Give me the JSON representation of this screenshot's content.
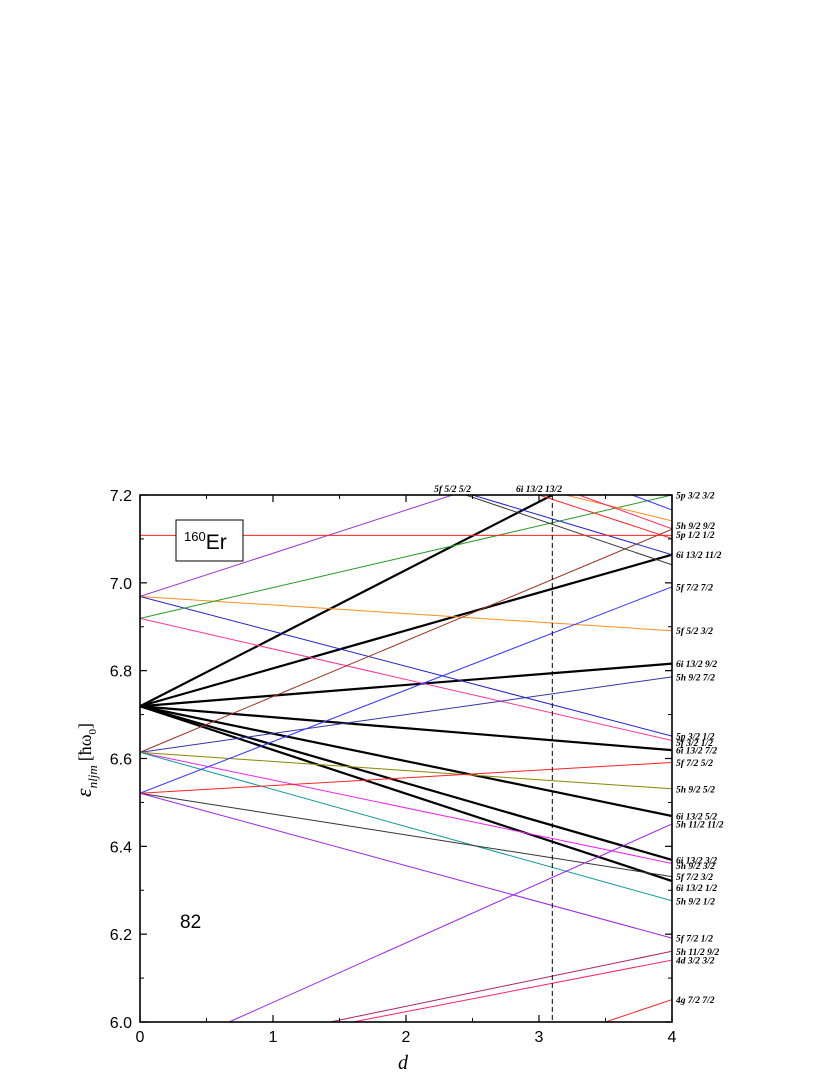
{
  "chart_data": {
    "type": "line",
    "xlim": [
      0,
      4
    ],
    "ylim": [
      6.0,
      7.2
    ],
    "x_ticks": [
      "0",
      "1",
      "2",
      "3",
      "4"
    ],
    "y_ticks": [
      "6.0",
      "6.2",
      "6.4",
      "6.6",
      "6.8",
      "7.0",
      "7.2"
    ],
    "xlabel": "d",
    "ylabel_symbol": "ε",
    "ylabel_subscript": "nljm",
    "ylabel_unit": "[ħω",
    "ylabel_unit_sub": "0",
    "ylabel_unit_close": "]",
    "nucleus_mass": "160",
    "nucleus_symbol": "Er",
    "magic_number": "82",
    "vertical_line_x": 3.1,
    "horizontal_line_y": 7.108,
    "lines": [
      {
        "x0": 0,
        "y0": 6.719,
        "x1": 3.1,
        "y1": 7.2,
        "color": "#000000",
        "thick": true
      },
      {
        "x0": 0,
        "y0": 6.719,
        "x1": 4,
        "y1": 7.064,
        "color": "#000000",
        "thick": true
      },
      {
        "x0": 0,
        "y0": 6.719,
        "x1": 4,
        "y1": 6.816,
        "color": "#000000",
        "thick": true
      },
      {
        "x0": 0,
        "y0": 6.719,
        "x1": 4,
        "y1": 6.619,
        "color": "#000000",
        "thick": true
      },
      {
        "x0": 0,
        "y0": 6.719,
        "x1": 4,
        "y1": 6.469,
        "color": "#000000",
        "thick": true
      },
      {
        "x0": 0,
        "y0": 6.719,
        "x1": 4,
        "y1": 6.369,
        "color": "#000000",
        "thick": true
      },
      {
        "x0": 0,
        "y0": 6.719,
        "x1": 4,
        "y1": 6.321,
        "color": "#000000",
        "thick": true
      },
      {
        "x0": 0,
        "y0": 6.969,
        "x1": 2.35,
        "y1": 7.2,
        "color": "#9933cc"
      },
      {
        "x0": 0,
        "y0": 6.969,
        "x1": 4,
        "y1": 6.891,
        "color": "#ff8c1a"
      },
      {
        "x0": 0,
        "y0": 6.969,
        "x1": 4,
        "y1": 6.651,
        "color": "#2222cc"
      },
      {
        "x0": 0,
        "y0": 6.919,
        "x1": 4,
        "y1": 7.2,
        "color": "#229922"
      },
      {
        "x0": 0,
        "y0": 6.919,
        "x1": 4,
        "y1": 6.641,
        "color": "#ff3399"
      },
      {
        "x0": 0,
        "y0": 6.614,
        "x1": 4,
        "y1": 7.122,
        "color": "#993322"
      },
      {
        "x0": 0,
        "y0": 6.614,
        "x1": 4,
        "y1": 6.786,
        "color": "#3333aa"
      },
      {
        "x0": 0,
        "y0": 6.614,
        "x1": 4,
        "y1": 6.531,
        "color": "#888800"
      },
      {
        "x0": 0,
        "y0": 6.614,
        "x1": 4,
        "y1": 6.361,
        "color": "#ee22ee"
      },
      {
        "x0": 0,
        "y0": 6.614,
        "x1": 4,
        "y1": 6.276,
        "color": "#119999"
      },
      {
        "x0": 0,
        "y0": 6.521,
        "x1": 4,
        "y1": 6.991,
        "color": "#3333ff"
      },
      {
        "x0": 0,
        "y0": 6.521,
        "x1": 4,
        "y1": 6.591,
        "color": "#ff2222"
      },
      {
        "x0": 0,
        "y0": 6.521,
        "x1": 4,
        "y1": 6.331,
        "color": "#333333"
      },
      {
        "x0": 0,
        "y0": 6.521,
        "x1": 4,
        "y1": 6.191,
        "color": "#9922ee"
      },
      {
        "x0": 0.67,
        "y0": 6.0,
        "x1": 4,
        "y1": 6.451,
        "color": "#9922ee"
      },
      {
        "x0": 1.43,
        "y0": 6.0,
        "x1": 4,
        "y1": 6.161,
        "color": "#aa2266"
      },
      {
        "x0": 1.6,
        "y0": 6.0,
        "x1": 4,
        "y1": 6.141,
        "color": "#ff2266"
      },
      {
        "x0": 3.5,
        "y0": 6.0,
        "x1": 4,
        "y1": 6.051,
        "color": "#ff2222"
      },
      {
        "x0": 2.45,
        "y0": 7.2,
        "x1": 4,
        "y1": 7.041,
        "color": "#333333"
      },
      {
        "x0": 2.5,
        "y0": 7.2,
        "x1": 4,
        "y1": 7.064,
        "color": "#2222cc"
      },
      {
        "x0": 3.2,
        "y0": 7.2,
        "x1": 4,
        "y1": 7.141,
        "color": "#ff8c1a"
      },
      {
        "x0": 3.0,
        "y0": 7.2,
        "x1": 4,
        "y1": 7.101,
        "color": "#ff2222"
      },
      {
        "x0": 3.3,
        "y0": 7.2,
        "x1": 4,
        "y1": 7.123,
        "color": "#ff2266"
      },
      {
        "x0": 3.7,
        "y0": 7.2,
        "x1": 4,
        "y1": 7.166,
        "color": "#3333ff"
      }
    ],
    "right_labels": [
      {
        "text": "5p 3/2 3/2",
        "y": 7.2
      },
      {
        "text": "5h 9/2 9/2",
        "y": 7.13
      },
      {
        "text": "5p 1/2 1/2",
        "y": 7.11
      },
      {
        "text": "6i 13/2 11/2",
        "y": 7.064
      },
      {
        "text": "5f 7/2 7/2",
        "y": 6.991
      },
      {
        "text": "5f 5/2 3/2",
        "y": 6.891
      },
      {
        "text": "6i 13/2 9/2",
        "y": 6.816
      },
      {
        "text": "5h 9/2 7/2",
        "y": 6.786
      },
      {
        "text": "5p 3/2 1/2",
        "y": 6.651
      },
      {
        "text": "5f 3/2 1/2",
        "y": 6.636
      },
      {
        "text": "6i 13/2 7/2",
        "y": 6.619
      },
      {
        "text": "5f 7/2 5/2",
        "y": 6.591
      },
      {
        "text": "5h 9/2 5/2",
        "y": 6.531
      },
      {
        "text": "6i 13/2 5/2",
        "y": 6.469
      },
      {
        "text": "5h 11/2 11/2",
        "y": 6.451
      },
      {
        "text": "6i 13/2 3/2",
        "y": 6.369
      },
      {
        "text": "5h 9/2 3/2",
        "y": 6.356
      },
      {
        "text": "5f 7/2 3/2",
        "y": 6.331
      },
      {
        "text": "6i 13/2 1/2",
        "y": 6.306
      },
      {
        "text": "5h 9/2 1/2",
        "y": 6.276
      },
      {
        "text": "5f 7/2 1/2",
        "y": 6.191
      },
      {
        "text": "5h 11/2 9/2",
        "y": 6.161
      },
      {
        "text": "4d 3/2 3/2",
        "y": 6.141
      },
      {
        "text": "4g 7/2 7/2",
        "y": 6.051
      }
    ],
    "top_labels": [
      {
        "text": "5f 5/2 5/2",
        "x": 2.35
      },
      {
        "text": "6i 13/2 13/2",
        "x": 3.0
      }
    ]
  }
}
